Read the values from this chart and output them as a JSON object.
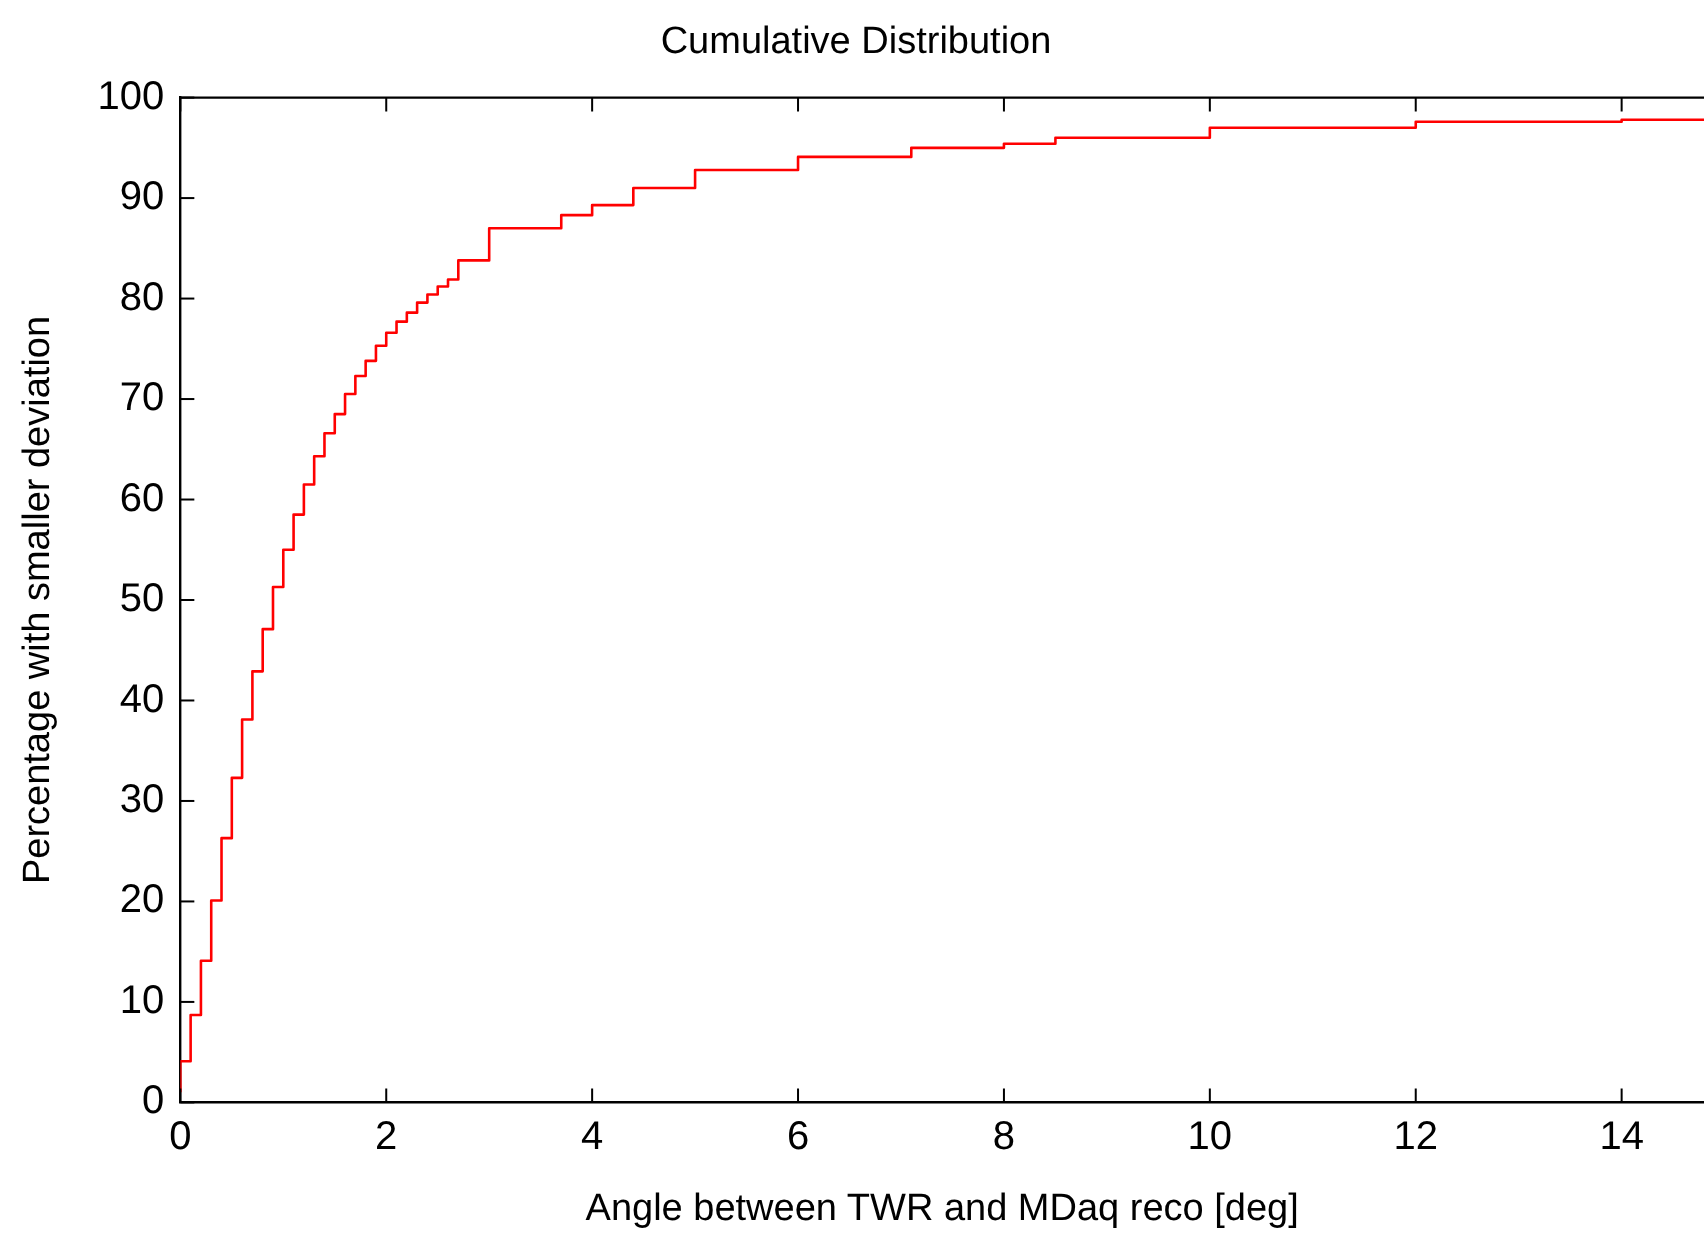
{
  "chart_data": {
    "type": "step",
    "title": "Cumulative Distribution",
    "xlabel": "Angle between TWR and MDaq reco [deg]",
    "ylabel": "Percentage with smaller deviation",
    "x": [
      0,
      0.1,
      0.2,
      0.3,
      0.4,
      0.5,
      0.6,
      0.7,
      0.8,
      0.9,
      1.0,
      1.1,
      1.2,
      1.3,
      1.4,
      1.5,
      1.6,
      1.7,
      1.8,
      1.9,
      2.0,
      2.1,
      2.2,
      2.3,
      2.4,
      2.5,
      2.6,
      2.7,
      3.0,
      3.7,
      4.0,
      4.4,
      5.0,
      6.0,
      7.1,
      8.0,
      8.5,
      10.0,
      12.0,
      14.0,
      14.8
    ],
    "series": [
      {
        "color": "#ff0000",
        "values": [
          1.0,
          4.1,
          8.7,
          14.1,
          20.1,
          26.3,
          32.3,
          38.1,
          42.9,
          47.1,
          51.3,
          55.0,
          58.5,
          61.5,
          64.3,
          66.6,
          68.5,
          70.5,
          72.3,
          73.8,
          75.3,
          76.6,
          77.7,
          78.6,
          79.6,
          80.4,
          81.2,
          81.9,
          83.8,
          87.0,
          88.3,
          89.3,
          91.0,
          92.8,
          94.1,
          95.0,
          95.4,
          96.0,
          97.0,
          97.6,
          97.8
        ]
      }
    ],
    "xlim": [
      0,
      14.8
    ],
    "ylim": [
      0,
      100
    ],
    "xticks": [
      0,
      2,
      4,
      6,
      8,
      10,
      12,
      14
    ],
    "yticks": [
      0,
      10,
      20,
      30,
      40,
      50,
      60,
      70,
      80,
      90,
      100
    ],
    "grid": false,
    "legend": false,
    "marker": "none",
    "line_style": "solid"
  }
}
